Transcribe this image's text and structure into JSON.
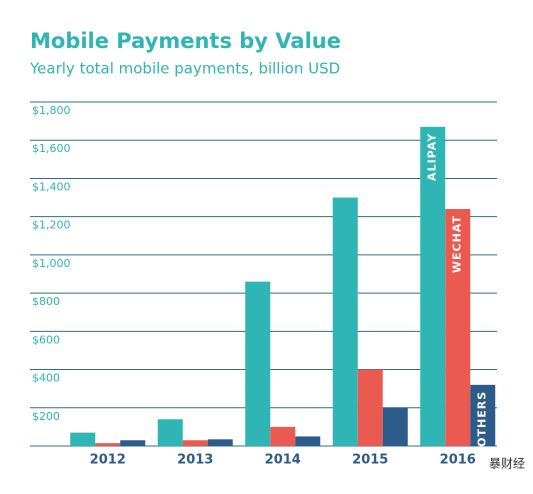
{
  "chart_data": {
    "type": "bar",
    "title": "Mobile Payments by Value",
    "subtitle": "Yearly total mobile payments, billion USD",
    "categories": [
      "2012",
      "2013",
      "2014",
      "2015",
      "2016"
    ],
    "series": [
      {
        "name": "ALIPAY",
        "color": "#2fb5b3",
        "values": [
          70,
          140,
          860,
          1300,
          1670
        ]
      },
      {
        "name": "WECHAT",
        "color": "#ea5a50",
        "values": [
          15,
          30,
          100,
          400,
          1240
        ]
      },
      {
        "name": "OTHERS",
        "color": "#2d5b8a",
        "values": [
          30,
          35,
          50,
          200,
          320
        ]
      }
    ],
    "ylim": [
      0,
      1800
    ],
    "yticks": [
      {
        "value": 200,
        "label": "$200"
      },
      {
        "value": 400,
        "label": "$400"
      },
      {
        "value": 600,
        "label": "$600"
      },
      {
        "value": 800,
        "label": "$800"
      },
      {
        "value": 1000,
        "label": "$1,000"
      },
      {
        "value": 1200,
        "label": "$1,200"
      },
      {
        "value": 1400,
        "label": "$1,400"
      },
      {
        "value": 1600,
        "label": "$1,600"
      },
      {
        "value": 1800,
        "label": "$1,800"
      }
    ],
    "grid": true
  },
  "watermark": "暴财经"
}
